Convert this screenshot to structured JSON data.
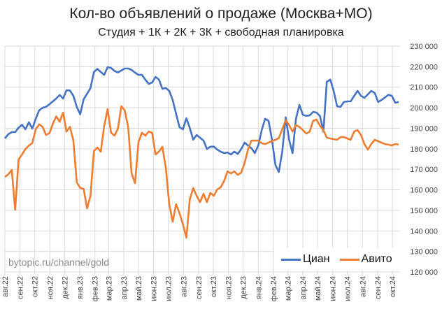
{
  "chart_data": {
    "type": "line",
    "title": "Кол-во объявлений о продаже (Москва+МО)",
    "subtitle": "Студия + 1К + 2К + 3К + свободная планировка",
    "xlabel": "",
    "ylabel": "",
    "ylim": [
      120000,
      230000
    ],
    "yticks": [
      "120 000",
      "130 000",
      "140 000",
      "150 000",
      "160 000",
      "170 000",
      "180 000",
      "190 000",
      "200 000",
      "210 000",
      "220 000",
      "230 000"
    ],
    "ytick_values": [
      120000,
      130000,
      140000,
      150000,
      160000,
      170000,
      180000,
      190000,
      200000,
      210000,
      220000,
      230000
    ],
    "xticks": [
      "авг.22",
      "сен.22",
      "окт.22",
      "ноя.22",
      "дек.22",
      "янв.23",
      "фев.23",
      "мар.23",
      "апр.23",
      "май.23",
      "июн.23",
      "июл.23",
      "авг.23",
      "сен.23",
      "окт.23",
      "ноя.23",
      "дек.23",
      "янв.24",
      "фев.24",
      "мар.24",
      "апр.24",
      "май.24",
      "июн.24",
      "июл.24",
      "авг.24",
      "сен.24",
      "окт.24"
    ],
    "xtick_dates": [
      "2022-08-01",
      "2022-09-01",
      "2022-10-01",
      "2022-11-01",
      "2022-12-01",
      "2023-01-01",
      "2023-02-01",
      "2023-03-01",
      "2023-04-01",
      "2023-05-01",
      "2023-06-01",
      "2023-07-01",
      "2023-08-01",
      "2023-09-01",
      "2023-10-01",
      "2023-11-01",
      "2023-12-01",
      "2024-01-01",
      "2024-02-01",
      "2024-03-01",
      "2024-04-01",
      "2024-05-01",
      "2024-06-01",
      "2024-07-01",
      "2024-08-01",
      "2024-09-01",
      "2024-10-01"
    ],
    "grid": true,
    "legend_position": "bottom-right",
    "x": [
      "2022-08-01",
      "2022-08-08",
      "2022-08-15",
      "2022-08-22",
      "2022-08-29",
      "2022-09-05",
      "2022-09-12",
      "2022-09-19",
      "2022-09-26",
      "2022-10-03",
      "2022-10-10",
      "2022-10-17",
      "2022-10-24",
      "2022-10-31",
      "2022-11-07",
      "2022-11-14",
      "2022-11-21",
      "2022-11-28",
      "2022-12-05",
      "2022-12-12",
      "2022-12-19",
      "2022-12-26",
      "2023-01-02",
      "2023-01-09",
      "2023-01-16",
      "2023-01-23",
      "2023-01-30",
      "2023-02-06",
      "2023-02-13",
      "2023-02-20",
      "2023-02-27",
      "2023-03-06",
      "2023-03-13",
      "2023-03-20",
      "2023-03-27",
      "2023-04-03",
      "2023-04-10",
      "2023-04-17",
      "2023-04-24",
      "2023-05-01",
      "2023-05-08",
      "2023-05-15",
      "2023-05-22",
      "2023-05-29",
      "2023-06-05",
      "2023-06-12",
      "2023-06-19",
      "2023-06-26",
      "2023-07-03",
      "2023-07-10",
      "2023-07-17",
      "2023-07-24",
      "2023-07-31",
      "2023-08-07",
      "2023-08-14",
      "2023-08-21",
      "2023-08-28",
      "2023-09-04",
      "2023-09-11",
      "2023-09-18",
      "2023-09-25",
      "2023-10-02",
      "2023-10-09",
      "2023-10-16",
      "2023-10-23",
      "2023-10-30",
      "2023-11-06",
      "2023-11-13",
      "2023-11-20",
      "2023-11-27",
      "2023-12-04",
      "2023-12-11",
      "2023-12-18",
      "2023-12-25",
      "2024-01-01",
      "2024-01-08",
      "2024-01-15",
      "2024-01-22",
      "2024-01-29",
      "2024-02-05",
      "2024-02-12",
      "2024-02-19",
      "2024-02-26",
      "2024-03-04",
      "2024-03-11",
      "2024-03-18",
      "2024-03-25",
      "2024-04-01",
      "2024-04-08",
      "2024-04-15",
      "2024-04-22",
      "2024-04-29",
      "2024-05-06",
      "2024-05-13",
      "2024-05-20",
      "2024-05-27",
      "2024-06-03",
      "2024-06-10",
      "2024-06-17",
      "2024-06-24",
      "2024-07-01",
      "2024-07-08",
      "2024-07-15",
      "2024-07-22",
      "2024-07-29",
      "2024-08-05",
      "2024-08-12",
      "2024-08-19",
      "2024-08-26",
      "2024-09-02",
      "2024-09-09",
      "2024-09-16",
      "2024-09-23",
      "2024-09-30",
      "2024-10-07",
      "2024-10-14"
    ],
    "series": [
      {
        "name": "Циан",
        "color": "#4472C4",
        "values": [
          185000,
          187100,
          188100,
          188100,
          190300,
          191700,
          189500,
          192900,
          189800,
          194600,
          198700,
          200000,
          200400,
          201700,
          203100,
          204500,
          206200,
          204500,
          208500,
          208400,
          205800,
          200400,
          196800,
          204100,
          206800,
          209600,
          217400,
          218900,
          217400,
          216000,
          219800,
          219400,
          217900,
          217200,
          218100,
          219100,
          219100,
          218400,
          217100,
          216000,
          216000,
          213700,
          211600,
          212300,
          215000,
          213700,
          209200,
          209600,
          208200,
          203800,
          197000,
          190500,
          189500,
          194900,
          190100,
          184400,
          186700,
          185400,
          184000,
          179900,
          181000,
          181100,
          179600,
          178600,
          177900,
          178200,
          177200,
          178600,
          177500,
          179900,
          183000,
          181600,
          180300,
          177900,
          181600,
          189100,
          194600,
          193600,
          184400,
          172100,
          168700,
          178600,
          195300,
          184400,
          177900,
          194600,
          201400,
          196600,
          196000,
          196300,
          198000,
          197600,
          196000,
          188400,
          212600,
          213700,
          208200,
          200700,
          200400,
          202800,
          203100,
          203100,
          205800,
          208200,
          205800,
          204800,
          206500,
          208200,
          207200,
          202800,
          203800,
          205000,
          206300,
          205800,
          202400,
          202800
        ]
      },
      {
        "name": "Авито",
        "color": "#ED7D31",
        "values": [
          166300,
          167500,
          169700,
          150300,
          174800,
          177200,
          179900,
          181500,
          182800,
          189500,
          191900,
          190700,
          186700,
          187600,
          192200,
          195800,
          193200,
          197600,
          188400,
          190700,
          184000,
          163600,
          160900,
          160500,
          151000,
          157100,
          178900,
          180600,
          178600,
          191200,
          199300,
          187800,
          186400,
          189800,
          200700,
          198700,
          190500,
          168000,
          163200,
          183300,
          187800,
          186400,
          188400,
          187800,
          177200,
          178600,
          181000,
          170700,
          153000,
          144500,
          153000,
          148600,
          143100,
          136700,
          155400,
          160900,
          157100,
          154000,
          158100,
          154000,
          158500,
          157100,
          160200,
          161200,
          164300,
          169000,
          168000,
          169000,
          167300,
          168400,
          173100,
          179600,
          184000,
          184000,
          184000,
          182700,
          182300,
          183000,
          183700,
          184400,
          185200,
          189500,
          193900,
          191500,
          188400,
          191500,
          190700,
          189100,
          187400,
          188400,
          193600,
          194200,
          191200,
          189100,
          185400,
          185000,
          184700,
          184400,
          185700,
          185700,
          185000,
          184400,
          188400,
          189100,
          186700,
          182300,
          179600,
          182300,
          184400,
          183700,
          183000,
          182300,
          182000,
          181600,
          182300,
          182000
        ]
      }
    ]
  },
  "watermark": "bytopic.ru/channel/gold"
}
